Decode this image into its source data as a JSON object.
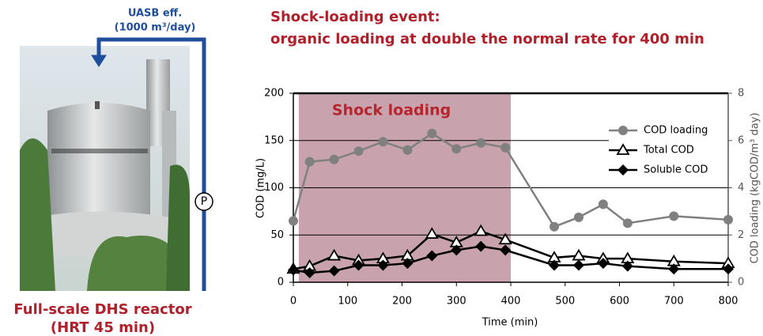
{
  "figure": {
    "arrow_label": [
      "UASB eff.",
      "(1000 m³/day)"
    ],
    "pump": "P",
    "caption": [
      "Full-scale DHS reactor",
      "(HRT 45 min)"
    ]
  },
  "chart_data": {
    "type": "line",
    "title": [
      "Shock-loading event:",
      "organic loading at double the normal rate for 400 min"
    ],
    "x_label": "Time (min)",
    "y_label": "COD (mg/L)",
    "y2_label": "COD loading (kgCOD/m³ day)",
    "highlight": {
      "label": "Shock loading",
      "x": [
        10,
        400
      ],
      "color": "#c8a3ad"
    },
    "xlim": [
      0,
      800
    ],
    "xticks": [
      0,
      100,
      200,
      300,
      400,
      500,
      600,
      700,
      800
    ],
    "ylim": [
      0,
      200
    ],
    "yticks": [
      0,
      50,
      100,
      150,
      200
    ],
    "y2lim": [
      0,
      8
    ],
    "y2ticks": [
      0,
      2,
      4,
      6,
      8
    ],
    "grid": true,
    "legend": "upper right",
    "x": [
      0,
      30,
      75,
      120,
      165,
      210,
      255,
      300,
      345,
      390,
      480,
      525,
      570,
      615,
      700,
      800
    ],
    "series": [
      {
        "name": "COD loading",
        "color": "#808080",
        "marker": "circle",
        "axis": "y2",
        "values": [
          2.6,
          5.1,
          5.2,
          5.55,
          5.95,
          5.6,
          6.3,
          5.65,
          5.9,
          5.7,
          2.35,
          2.75,
          3.3,
          2.5,
          2.8,
          2.65
        ]
      },
      {
        "name": "Total COD",
        "color": "#000000",
        "marker": "triangle",
        "values": [
          14,
          17,
          28,
          23,
          25,
          28,
          51,
          42,
          54,
          45,
          26,
          28,
          25,
          25,
          22,
          20
        ]
      },
      {
        "name": "Soluble COD",
        "color": "#000000",
        "marker": "diamond",
        "values": [
          13,
          10,
          12,
          18,
          18,
          20,
          28,
          34,
          38,
          34,
          18,
          18,
          20,
          17,
          14,
          14
        ]
      }
    ]
  }
}
